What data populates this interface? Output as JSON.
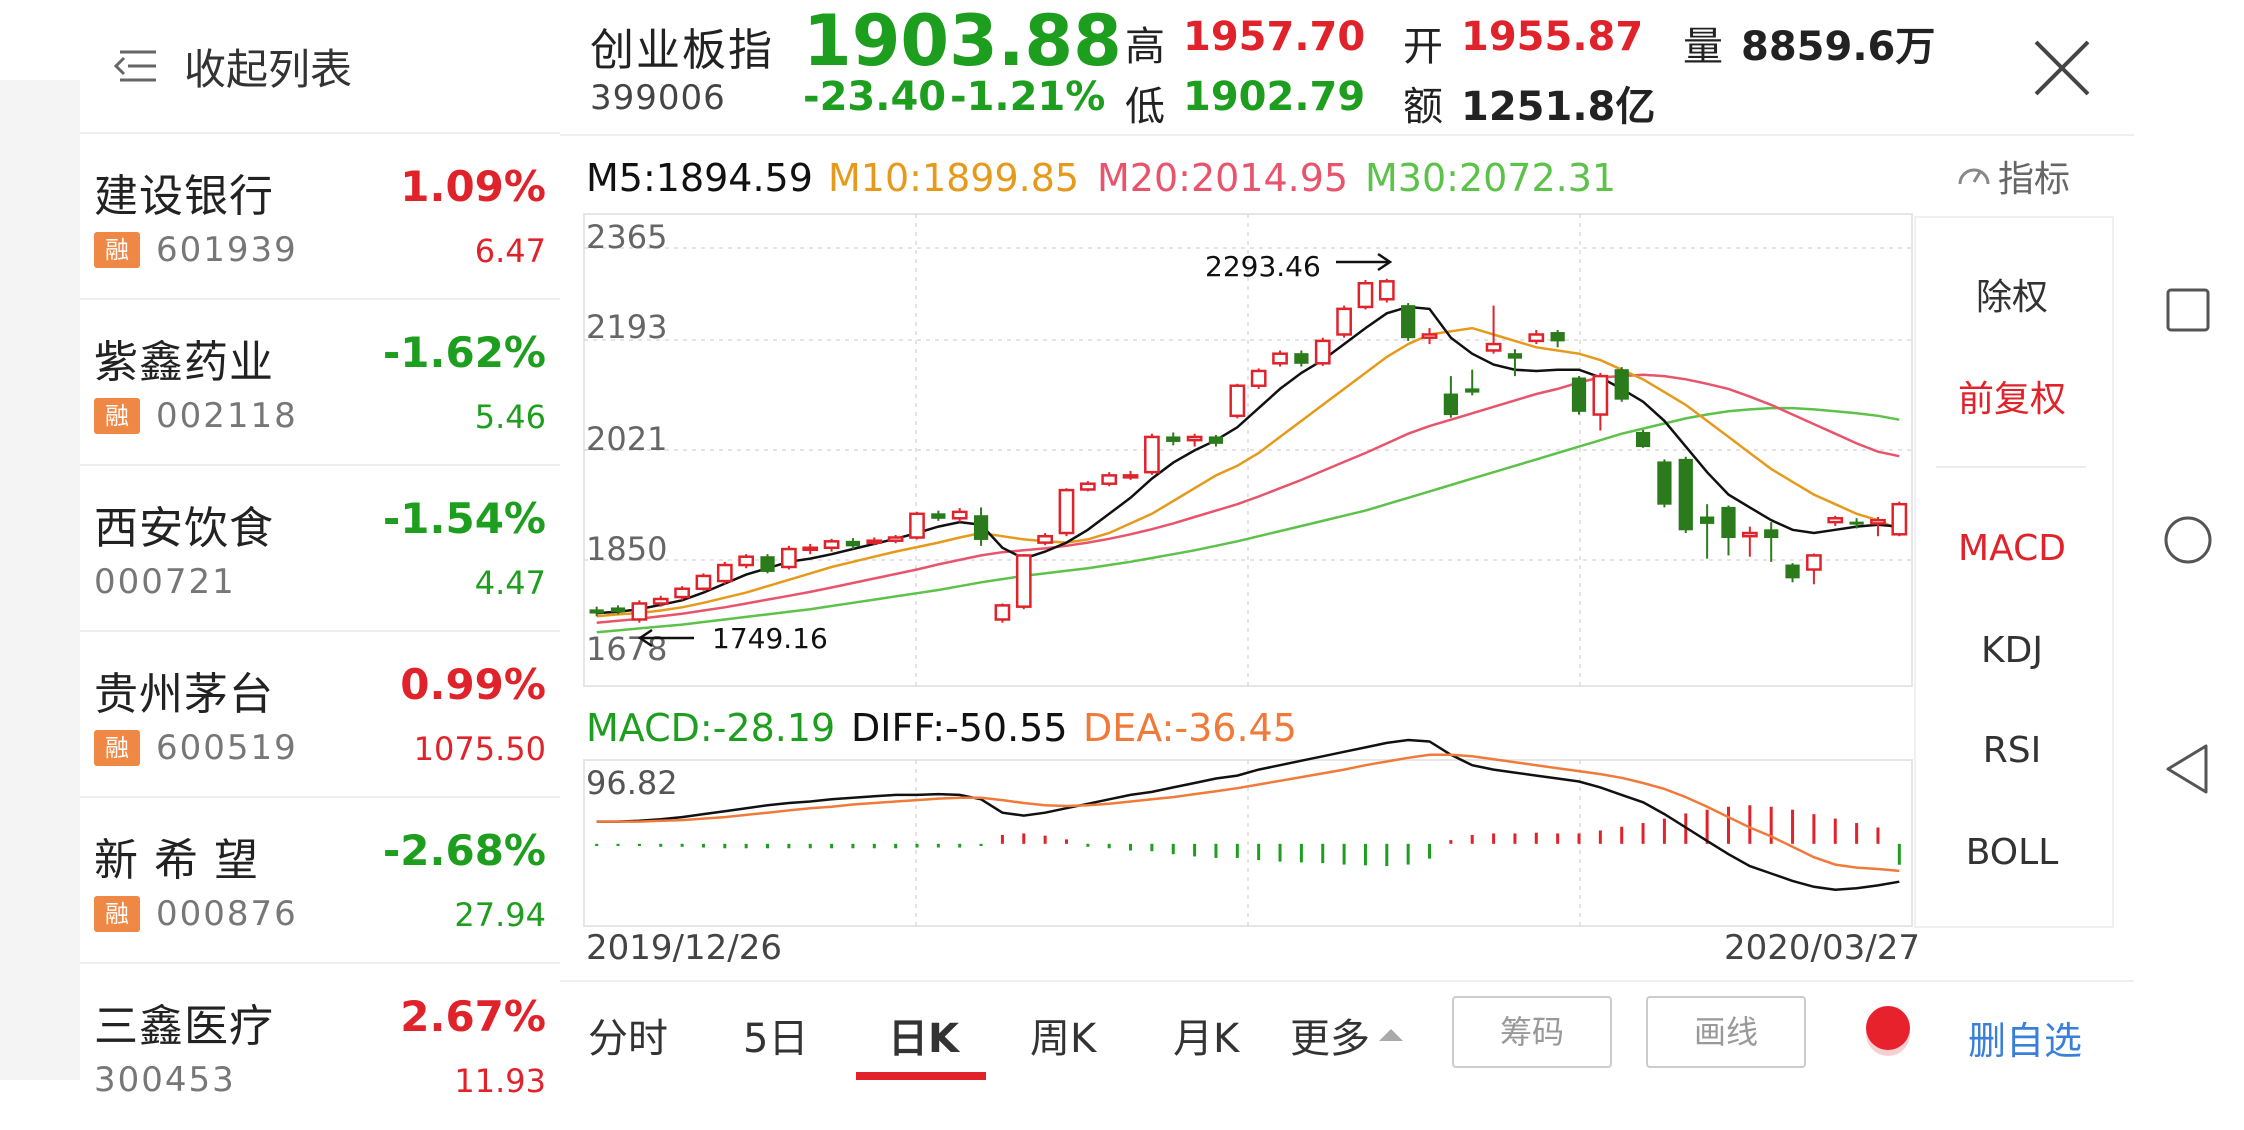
{
  "sidebar": {
    "collapse_label": "收起列表",
    "stocks": [
      {
        "name": "建设银行",
        "pct": "1.09%",
        "code": "601939",
        "price": "6.47",
        "tag": "融",
        "dir": "up"
      },
      {
        "name": "紫鑫药业",
        "pct": "-1.62%",
        "code": "002118",
        "price": "5.46",
        "tag": "融",
        "dir": "down"
      },
      {
        "name": "西安饮食",
        "pct": "-1.54%",
        "code": "000721",
        "price": "4.47",
        "tag": "",
        "dir": "down"
      },
      {
        "name": "贵州茅台",
        "pct": "0.99%",
        "code": "600519",
        "price": "1075.50",
        "tag": "融",
        "dir": "up"
      },
      {
        "name": "新 希 望",
        "pct": "-2.68%",
        "code": "000876",
        "price": "27.94",
        "tag": "融",
        "dir": "down"
      },
      {
        "name": "三鑫医疗",
        "pct": "2.67%",
        "code": "300453",
        "price": "11.93",
        "tag": "",
        "dir": "up"
      }
    ]
  },
  "header": {
    "index_name": "创业板指",
    "index_code": "399006",
    "price": "1903.88",
    "change": "-23.40",
    "change_pct": "-1.21%",
    "high_label": "高",
    "high": "1957.70",
    "low_label": "低",
    "low": "1902.79",
    "open_label": "开",
    "open": "1955.87",
    "amount_label": "额",
    "amount": "1251.8亿",
    "volume_label": "量",
    "volume": "8859.6万"
  },
  "ma_line": {
    "m5": "M5:1894.59",
    "m10": "M10:1899.85",
    "m20": "M20:2014.95",
    "m30": "M30:2072.31",
    "indicator_label": "指标"
  },
  "price_axis": [
    "2365",
    "2193",
    "2021",
    "1850",
    "1678"
  ],
  "annotations": {
    "max_label": "2293.46",
    "min_label": "1749.16"
  },
  "macd_line": {
    "macd": "MACD:-28.19",
    "diff": "DIFF:-50.55",
    "dea": "DEA:-36.45",
    "axis_top": "96.82"
  },
  "date_range": {
    "start": "2019/12/26",
    "end": "2020/03/27"
  },
  "side_menu": {
    "items": [
      "除权",
      "前复权",
      "MACD",
      "KDJ",
      "RSI",
      "BOLL"
    ]
  },
  "tabs": {
    "items": [
      "分时",
      "5日",
      "日K",
      "周K",
      "月K",
      "更多"
    ],
    "active": "日K",
    "chip_label": "筹码",
    "draw_label": "画线",
    "remove_label": "删自选"
  },
  "colors": {
    "up": "#e0232b",
    "down": "#1e9e1e",
    "ma5": "#111111",
    "ma10": "#e69a1c",
    "ma20": "#e8546c",
    "ma30": "#5cc24a",
    "dea": "#f07a3a",
    "link": "#3a7fd8"
  },
  "chart_data": {
    "type": "candlestick",
    "x_start": "2019/12/26",
    "x_end": "2020/03/27",
    "ylim": [
      1678,
      2365
    ],
    "candles": [
      [
        1775,
        1770,
        1780,
        1765
      ],
      [
        1778,
        1772,
        1782,
        1768
      ],
      [
        1760,
        1785,
        1790,
        1755
      ],
      [
        1785,
        1792,
        1797,
        1780
      ],
      [
        1795,
        1808,
        1812,
        1790
      ],
      [
        1808,
        1828,
        1832,
        1805
      ],
      [
        1820,
        1845,
        1850,
        1815
      ],
      [
        1845,
        1858,
        1862,
        1840
      ],
      [
        1858,
        1835,
        1862,
        1832
      ],
      [
        1842,
        1870,
        1875,
        1838
      ],
      [
        1870,
        1872,
        1878,
        1862
      ],
      [
        1872,
        1882,
        1886,
        1866
      ],
      [
        1882,
        1875,
        1887,
        1870
      ],
      [
        1880,
        1883,
        1888,
        1876
      ],
      [
        1883,
        1888,
        1892,
        1879
      ],
      [
        1888,
        1925,
        1928,
        1885
      ],
      [
        1925,
        1918,
        1930,
        1914
      ],
      [
        1918,
        1928,
        1934,
        1912
      ],
      [
        1922,
        1885,
        1935,
        1875
      ],
      [
        1760,
        1782,
        1785,
        1755
      ],
      [
        1780,
        1860,
        1862,
        1776
      ],
      [
        1880,
        1890,
        1895,
        1876
      ],
      [
        1895,
        1962,
        1965,
        1890
      ],
      [
        1963,
        1972,
        1976,
        1960
      ],
      [
        1972,
        1985,
        1990,
        1968
      ],
      [
        1985,
        1985,
        1992,
        1978
      ],
      [
        1990,
        2045,
        2050,
        1986
      ],
      [
        2045,
        2038,
        2052,
        2032
      ],
      [
        2040,
        2045,
        2050,
        2030
      ],
      [
        2045,
        2035,
        2048,
        2030
      ],
      [
        2078,
        2125,
        2128,
        2074
      ],
      [
        2125,
        2148,
        2152,
        2120
      ],
      [
        2160,
        2175,
        2180,
        2155
      ],
      [
        2175,
        2160,
        2180,
        2155
      ],
      [
        2160,
        2195,
        2200,
        2156
      ],
      [
        2205,
        2245,
        2250,
        2200
      ],
      [
        2248,
        2285,
        2290,
        2244
      ],
      [
        2260,
        2288,
        2292,
        2255
      ],
      [
        2250,
        2200,
        2254,
        2195
      ],
      [
        2200,
        2205,
        2215,
        2190
      ],
      [
        2112,
        2080,
        2140,
        2075
      ],
      [
        2120,
        2115,
        2150,
        2110
      ],
      [
        2180,
        2190,
        2250,
        2175
      ],
      [
        2175,
        2168,
        2182,
        2140
      ],
      [
        2195,
        2205,
        2212,
        2190
      ],
      [
        2208,
        2195,
        2212,
        2185
      ],
      [
        2137,
        2085,
        2140,
        2080
      ],
      [
        2080,
        2140,
        2145,
        2055
      ],
      [
        2150,
        2104,
        2154,
        2100
      ],
      [
        2052,
        2030,
        2056,
        2028
      ],
      [
        2006,
        1940,
        2010,
        1935
      ],
      [
        2010,
        1900,
        2014,
        1895
      ],
      [
        1920,
        1910,
        1940,
        1855
      ],
      [
        1935,
        1888,
        1938,
        1860
      ],
      [
        1890,
        1895,
        1905,
        1858
      ],
      [
        1900,
        1888,
        1912,
        1850
      ],
      [
        1845,
        1825,
        1848,
        1818
      ],
      [
        1838,
        1860,
        1863,
        1815
      ],
      [
        1912,
        1918,
        1922,
        1906
      ],
      [
        1912,
        1910,
        1918,
        1902
      ],
      [
        1910,
        1915,
        1920,
        1890
      ],
      [
        1893,
        1940,
        1944,
        1890
      ]
    ],
    "ma5": [
      1770,
      1772,
      1776,
      1783,
      1790,
      1802,
      1816,
      1830,
      1840,
      1850,
      1855,
      1862,
      1870,
      1878,
      1886,
      1895,
      1905,
      1912,
      1908,
      1872,
      1855,
      1866,
      1880,
      1900,
      1925,
      1950,
      1980,
      2005,
      2024,
      2040,
      2060,
      2090,
      2120,
      2145,
      2165,
      2190,
      2215,
      2238,
      2248,
      2245,
      2200,
      2175,
      2158,
      2150,
      2148,
      2150,
      2150,
      2138,
      2120,
      2100,
      2070,
      2030,
      1990,
      1955,
      1935,
      1915,
      1900,
      1895,
      1900,
      1905,
      1908,
      1905
    ],
    "ma10": [
      1765,
      1768,
      1770,
      1774,
      1779,
      1786,
      1794,
      1802,
      1812,
      1822,
      1832,
      1842,
      1850,
      1858,
      1866,
      1873,
      1880,
      1888,
      1895,
      1890,
      1885,
      1882,
      1880,
      1885,
      1895,
      1910,
      1925,
      1945,
      1965,
      1985,
      2000,
      2020,
      2045,
      2070,
      2095,
      2120,
      2145,
      2170,
      2190,
      2205,
      2210,
      2215,
      2205,
      2195,
      2185,
      2180,
      2175,
      2165,
      2150,
      2135,
      2115,
      2095,
      2070,
      2045,
      2020,
      1995,
      1975,
      1955,
      1940,
      1925,
      1915,
      1900
    ],
    "ma20": [
      1755,
      1758,
      1761,
      1765,
      1769,
      1774,
      1779,
      1785,
      1791,
      1797,
      1803,
      1810,
      1817,
      1824,
      1831,
      1838,
      1846,
      1853,
      1860,
      1865,
      1868,
      1871,
      1875,
      1880,
      1886,
      1893,
      1901,
      1910,
      1920,
      1930,
      1940,
      1952,
      1965,
      1978,
      1992,
      2006,
      2020,
      2035,
      2050,
      2062,
      2072,
      2082,
      2092,
      2102,
      2112,
      2120,
      2130,
      2138,
      2140,
      2142,
      2140,
      2135,
      2128,
      2120,
      2108,
      2095,
      2080,
      2065,
      2050,
      2035,
      2022,
      2015
    ],
    "ma30": [
      1740,
      1743,
      1746,
      1749,
      1752,
      1756,
      1760,
      1764,
      1768,
      1772,
      1776,
      1781,
      1786,
      1791,
      1796,
      1801,
      1806,
      1812,
      1818,
      1823,
      1828,
      1832,
      1836,
      1840,
      1845,
      1850,
      1856,
      1862,
      1868,
      1875,
      1882,
      1890,
      1898,
      1906,
      1914,
      1922,
      1930,
      1940,
      1950,
      1960,
      1970,
      1980,
      1990,
      2000,
      2010,
      2020,
      2030,
      2040,
      2050,
      2058,
      2066,
      2074,
      2080,
      2085,
      2088,
      2090,
      2090,
      2088,
      2085,
      2082,
      2078,
      2072
    ],
    "macd": {
      "ylim": [
        -100,
        96.82
      ],
      "diff": [
        30,
        30,
        31,
        33,
        36,
        40,
        44,
        48,
        52,
        55,
        57,
        60,
        62,
        64,
        66,
        66,
        67,
        66,
        60,
        42,
        38,
        42,
        48,
        54,
        60,
        66,
        70,
        76,
        82,
        88,
        92,
        100,
        106,
        112,
        118,
        124,
        130,
        136,
        140,
        138,
        120,
        106,
        100,
        96,
        92,
        88,
        84,
        76,
        66,
        56,
        40,
        22,
        4,
        -14,
        -30,
        -40,
        -50,
        -58,
        -62,
        -60,
        -56,
        -51
      ],
      "dea": [
        30,
        30,
        30,
        31,
        32,
        34,
        36,
        39,
        42,
        45,
        48,
        50,
        53,
        55,
        57,
        59,
        61,
        62,
        62,
        59,
        55,
        52,
        51,
        52,
        54,
        57,
        60,
        63,
        67,
        71,
        75,
        80,
        85,
        90,
        95,
        100,
        106,
        111,
        116,
        120,
        120,
        118,
        114,
        110,
        106,
        102,
        98,
        94,
        89,
        82,
        74,
        63,
        50,
        36,
        22,
        10,
        -4,
        -18,
        -28,
        -32,
        -34,
        -36.45
      ],
      "hist": [
        -3,
        -3,
        -3,
        -4,
        -4,
        -5,
        -6,
        -6,
        -6,
        -6,
        -6,
        -6,
        -6,
        -6,
        -6,
        -5,
        -5,
        -5,
        -3,
        12,
        14,
        11,
        6,
        -4,
        -6,
        -9,
        -10,
        -14,
        -17,
        -19,
        -19,
        -22,
        -24,
        -25,
        -26,
        -28,
        -29,
        -30,
        -28,
        -20,
        5,
        12,
        14,
        14,
        15,
        14,
        14,
        18,
        23,
        28,
        34,
        41,
        46,
        50,
        52,
        50,
        46,
        40,
        34,
        28,
        22,
        -28.19
      ]
    }
  }
}
